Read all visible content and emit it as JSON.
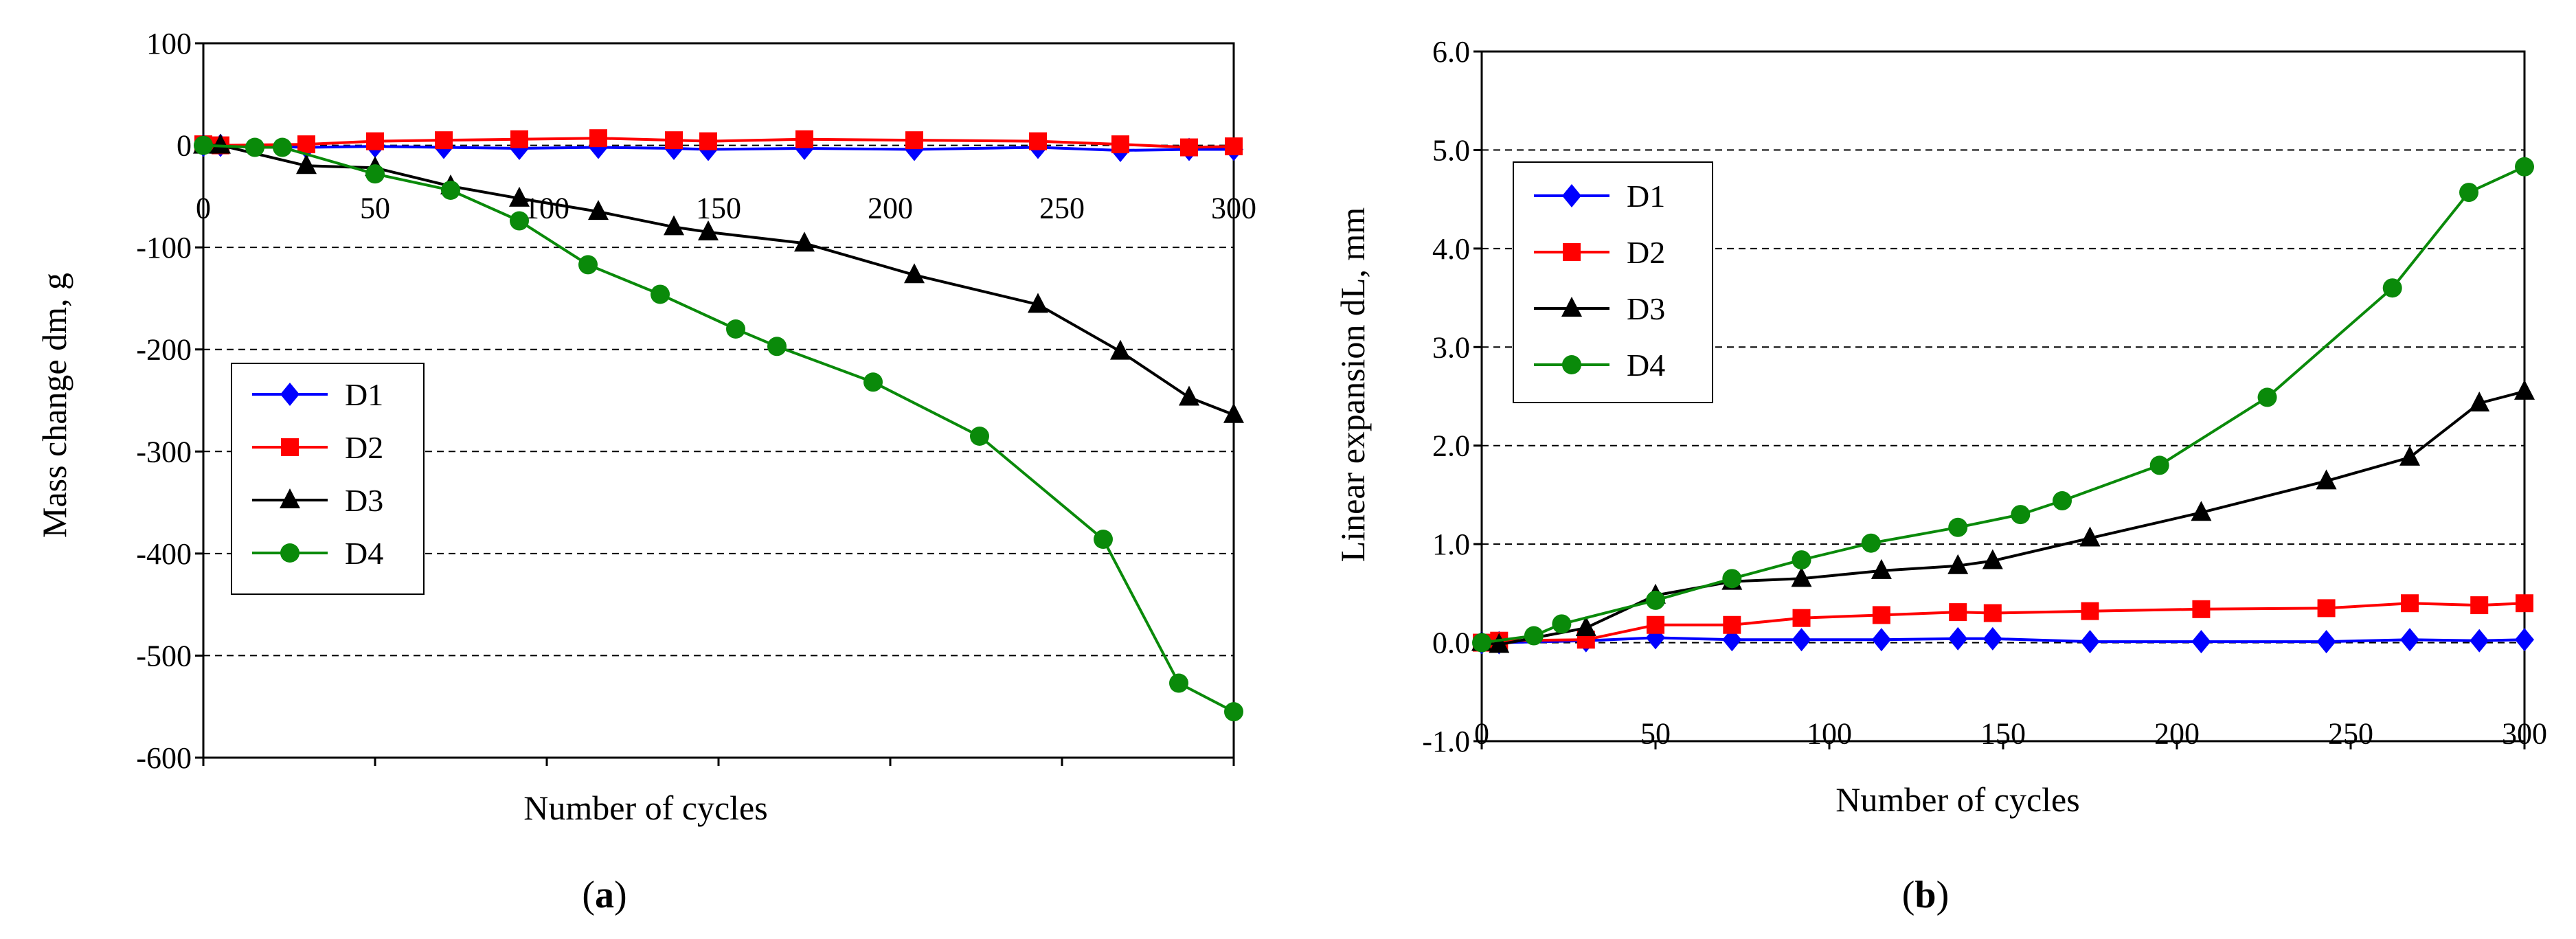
{
  "chart_data": [
    {
      "type": "line",
      "panel": "a",
      "caption_open": "(",
      "caption_letter": "a",
      "caption_close": ")",
      "xlabel": "Number of cycles",
      "ylabel": "Mass change dm, g",
      "xlim": [
        0,
        300
      ],
      "ylim": [
        -600,
        100
      ],
      "xticks": [
        0,
        50,
        100,
        150,
        200,
        250,
        300
      ],
      "xtick_labels": [
        "0",
        "50",
        "100",
        "150",
        "200",
        "250",
        "300"
      ],
      "yticks": [
        100,
        0,
        -100,
        -200,
        -300,
        -400,
        -500,
        -600
      ],
      "ytick_labels": [
        "100",
        "0",
        "-100",
        "-200",
        "-300",
        "-400",
        "-500",
        "-600"
      ],
      "grid": "horizontal dashed",
      "legend_position": "center-left",
      "series": [
        {
          "name": "D1",
          "color": "#0000ff",
          "marker": "diamond",
          "x": [
            0,
            5,
            30,
            50,
            70,
            92,
            115,
            137,
            147,
            175,
            207,
            243,
            267,
            287,
            300
          ],
          "y": [
            0,
            0,
            -2,
            -1,
            -2,
            -3,
            -2,
            -3,
            -4,
            -3,
            -4,
            -2,
            -5,
            -4,
            -4
          ]
        },
        {
          "name": "D2",
          "color": "#ff0000",
          "marker": "square",
          "x": [
            0,
            5,
            30,
            50,
            70,
            92,
            115,
            137,
            147,
            175,
            207,
            243,
            267,
            287,
            300
          ],
          "y": [
            1,
            0,
            1,
            4,
            5,
            6,
            7,
            5,
            4,
            6,
            5,
            4,
            1,
            -2,
            -1
          ]
        },
        {
          "name": "D3",
          "color": "#000000",
          "marker": "triangle",
          "x": [
            0,
            5,
            30,
            50,
            72,
            92,
            115,
            137,
            147,
            175,
            207,
            243,
            267,
            287,
            300
          ],
          "y": [
            0,
            0,
            -20,
            -22,
            -40,
            -52,
            -65,
            -80,
            -85,
            -96,
            -127,
            -156,
            -202,
            -247,
            -264
          ]
        },
        {
          "name": "D4",
          "color": "#0a8a0a",
          "marker": "circle",
          "x": [
            0,
            15,
            23,
            50,
            72,
            92,
            112,
            133,
            155,
            167,
            195,
            226,
            262,
            284,
            300
          ],
          "y": [
            0,
            -2,
            -2,
            -28,
            -44,
            -74,
            -117,
            -146,
            -180,
            -197,
            -232,
            -285,
            -386,
            -527,
            -555
          ]
        }
      ]
    },
    {
      "type": "line",
      "panel": "b",
      "caption_open": "(",
      "caption_letter": "b",
      "caption_close": ")",
      "xlabel": "Number of cycles",
      "ylabel": "Linear expansion dL, mm",
      "xlim": [
        0,
        300
      ],
      "ylim": [
        -1.0,
        6.0
      ],
      "xticks": [
        0,
        50,
        100,
        150,
        200,
        250,
        300
      ],
      "xtick_labels": [
        "0",
        "50",
        "100",
        "150",
        "200",
        "250",
        "300"
      ],
      "yticks": [
        6,
        5,
        4,
        3,
        2,
        1,
        0,
        -1
      ],
      "ytick_labels": [
        "6.0",
        "5.0",
        "4.0",
        "3.0",
        "2.0",
        "1.0",
        "0.0",
        "-1.0"
      ],
      "grid": "horizontal dashed",
      "legend_position": "top-left",
      "series": [
        {
          "name": "D1",
          "color": "#0000ff",
          "marker": "diamond",
          "x": [
            0,
            5,
            30,
            50,
            72,
            92,
            115,
            137,
            147,
            175,
            207,
            243,
            267,
            287,
            300
          ],
          "y": [
            0,
            0,
            0.02,
            0.05,
            0.03,
            0.03,
            0.03,
            0.04,
            0.04,
            0.01,
            0.01,
            0.01,
            0.03,
            0.02,
            0.03
          ]
        },
        {
          "name": "D2",
          "color": "#ff0000",
          "marker": "square",
          "x": [
            0,
            5,
            30,
            50,
            72,
            92,
            115,
            137,
            147,
            175,
            207,
            243,
            267,
            287,
            300
          ],
          "y": [
            0,
            0.02,
            0.03,
            0.18,
            0.18,
            0.25,
            0.28,
            0.31,
            0.3,
            0.32,
            0.34,
            0.35,
            0.4,
            0.38,
            0.4
          ]
        },
        {
          "name": "D3",
          "color": "#000000",
          "marker": "triangle",
          "x": [
            0,
            5,
            30,
            50,
            72,
            92,
            115,
            137,
            147,
            175,
            207,
            243,
            267,
            287,
            300
          ],
          "y": [
            0,
            -0.02,
            0.15,
            0.48,
            0.62,
            0.65,
            0.73,
            0.78,
            0.83,
            1.06,
            1.32,
            1.64,
            1.88,
            2.43,
            2.55
          ]
        },
        {
          "name": "D4",
          "color": "#0a8a0a",
          "marker": "circle",
          "x": [
            0,
            15,
            23,
            50,
            72,
            92,
            112,
            137,
            155,
            167,
            195,
            226,
            262,
            284,
            300
          ],
          "y": [
            0,
            0.07,
            0.19,
            0.43,
            0.65,
            0.84,
            1.01,
            1.17,
            1.3,
            1.44,
            1.8,
            2.49,
            3.6,
            4.57,
            4.83
          ]
        }
      ]
    }
  ]
}
